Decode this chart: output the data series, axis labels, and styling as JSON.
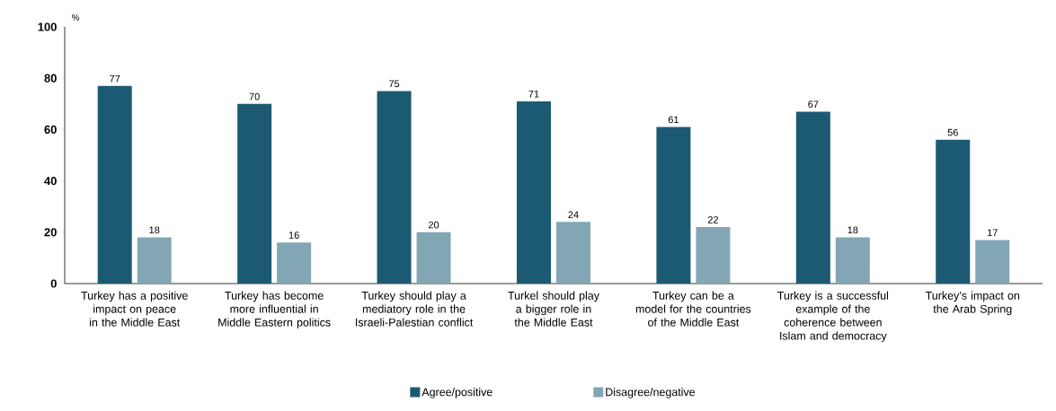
{
  "chart_data": {
    "type": "bar",
    "ylabel": "%",
    "categories": [
      "Turkey has a positive impact on peace in the Middle East",
      "Turkey has become more influential in Middle Eastern politics",
      "Turkey should play a mediatory role in the Israeli-Palestian conflict",
      "Turkel should play a bigger role in the Middle East",
      "Turkey can be a model for the countries of the Middle East",
      "Turkey is a successful example of the coherence between Islam and democracy",
      "Turkey’s impact on the Arab Spring"
    ],
    "series": [
      {
        "name": "Agree/positive",
        "color": "#1b5a72",
        "values": [
          77,
          70,
          75,
          71,
          61,
          67,
          56
        ]
      },
      {
        "name": "Disagree/negative",
        "color": "#82a6b4",
        "values": [
          18,
          16,
          20,
          24,
          22,
          18,
          17
        ]
      }
    ],
    "ylim": [
      0,
      100
    ],
    "yticks": [
      0,
      20,
      40,
      60,
      80,
      100
    ],
    "data_labels": true,
    "legend": "bottom",
    "grid": false
  }
}
